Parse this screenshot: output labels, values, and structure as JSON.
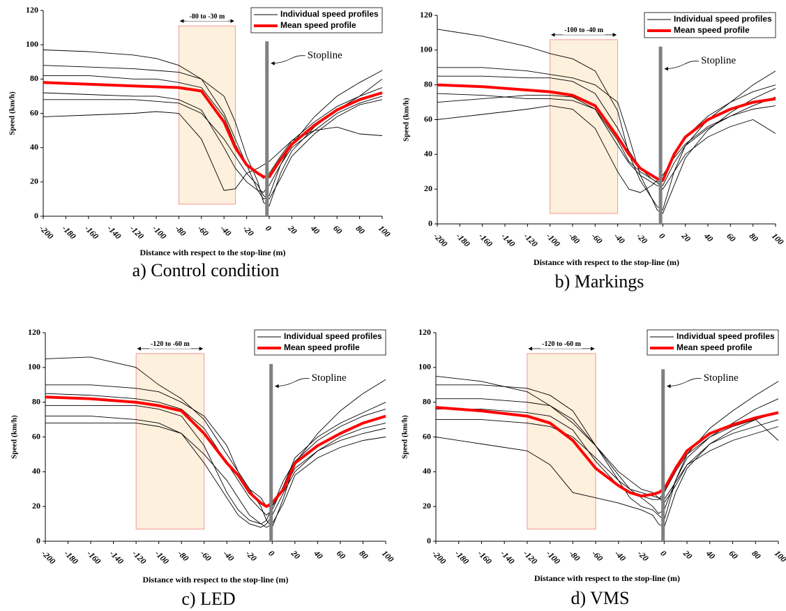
{
  "chart_data": [
    {
      "type": "line",
      "caption": "a) Control condition",
      "xlabel": "Distance with respect to the stop-line (m)",
      "ylabel": "Speed (km/h)",
      "xlim": [
        -200,
        100
      ],
      "ylim": [
        0,
        120
      ],
      "xticks": [
        -200,
        -180,
        -160,
        -140,
        -120,
        -100,
        -80,
        -60,
        -40,
        -20,
        0,
        20,
        40,
        60,
        80,
        100
      ],
      "yticks": [
        0,
        20,
        40,
        60,
        80,
        100,
        120
      ],
      "legend": "upper right",
      "stopline": {
        "label": "Stopline",
        "x": -2,
        "height": 102
      },
      "highlight": {
        "label": "-80 to -30 m",
        "x": [
          -80,
          -30
        ],
        "y": [
          7,
          111
        ]
      },
      "x": [
        -200,
        -160,
        -120,
        -100,
        -80,
        -60,
        -40,
        -30,
        -20,
        -10,
        -5,
        0,
        10,
        20,
        40,
        60,
        80,
        100
      ],
      "series": [
        {
          "name": "Individual speed profiles",
          "color": "#000000",
          "profiles": [
            [
              97,
              96,
              94,
              92,
              88,
              80,
              60,
              45,
              30,
              15,
              10,
              12,
              30,
              42,
              58,
              70,
              78,
              85
            ],
            [
              72,
              71,
              70,
              70,
              68,
              62,
              40,
              28,
              20,
              15,
              14,
              18,
              30,
              40,
              50,
              60,
              66,
              70
            ],
            [
              82,
              82,
              80,
              80,
              78,
              75,
              58,
              42,
              30,
              25,
              22,
              25,
              35,
              44,
              55,
              64,
              70,
              75
            ],
            [
              58,
              59,
              60,
              61,
              60,
              45,
              15,
              16,
              25,
              28,
              30,
              32,
              38,
              44,
              50,
              52,
              48,
              47
            ],
            [
              88,
              87,
              86,
              85,
              84,
              80,
              70,
              55,
              35,
              20,
              8,
              6,
              25,
              38,
              52,
              62,
              70,
              80
            ],
            [
              68,
              68,
              68,
              67,
              66,
              60,
              45,
              35,
              25,
              18,
              12,
              10,
              22,
              35,
              48,
              58,
              65,
              68
            ]
          ]
        },
        {
          "name": "Mean speed profile",
          "color": "#ff0000",
          "values": [
            78,
            77,
            76,
            75.5,
            75,
            73,
            55,
            40,
            30,
            25,
            23,
            23,
            33,
            42,
            53,
            62,
            68,
            72
          ]
        }
      ]
    },
    {
      "type": "line",
      "caption": "b) Markings",
      "xlabel": "Distance with respect to the stop-line (m)",
      "ylabel": "Speed (km/h)",
      "xlim": [
        -200,
        100
      ],
      "ylim": [
        0,
        120
      ],
      "xticks": [
        -200,
        -180,
        -160,
        -140,
        -120,
        -100,
        -80,
        -60,
        -40,
        -20,
        0,
        20,
        40,
        60,
        80,
        100
      ],
      "yticks": [
        0,
        20,
        40,
        60,
        80,
        100,
        120
      ],
      "legend": "upper right",
      "stopline": {
        "label": "Stopline",
        "x": -2,
        "height": 102
      },
      "highlight": {
        "label": "-100 to -40 m",
        "x": [
          -100,
          -40
        ],
        "y": [
          6,
          106
        ]
      },
      "x": [
        -200,
        -160,
        -120,
        -100,
        -80,
        -60,
        -40,
        -30,
        -20,
        -10,
        -5,
        0,
        10,
        20,
        40,
        60,
        80,
        100
      ],
      "series": [
        {
          "name": "Individual speed profiles",
          "color": "#000000",
          "profiles": [
            [
              112,
              108,
              102,
              98,
              95,
              88,
              65,
              40,
              25,
              15,
              10,
              8,
              30,
              45,
              60,
              70,
              80,
              88
            ],
            [
              70,
              72,
              74,
              74,
              73,
              66,
              45,
              35,
              28,
              24,
              22,
              22,
              35,
              45,
              55,
              62,
              66,
              68
            ],
            [
              85,
              85,
              84,
              84,
              82,
              75,
              55,
              42,
              32,
              26,
              24,
              26,
              40,
              50,
              62,
              70,
              76,
              80
            ],
            [
              60,
              63,
              66,
              68,
              66,
              55,
              30,
              20,
              18,
              22,
              25,
              28,
              38,
              46,
              56,
              62,
              68,
              73
            ],
            [
              90,
              90,
              88,
              86,
              84,
              80,
              70,
              50,
              28,
              15,
              8,
              6,
              22,
              38,
              54,
              64,
              72,
              78
            ],
            [
              75,
              74,
              72,
              72,
              71,
              66,
              48,
              36,
              30,
              26,
              24,
              20,
              30,
              40,
              50,
              56,
              60,
              52
            ]
          ]
        },
        {
          "name": "Mean speed profile",
          "color": "#ff0000",
          "values": [
            80,
            79,
            77,
            76,
            74,
            68,
            50,
            40,
            32,
            28,
            26,
            25,
            40,
            50,
            60,
            66,
            70,
            72
          ]
        }
      ]
    },
    {
      "type": "line",
      "caption": "c) LED",
      "xlabel": "Distance with respect to the stop-line (m)",
      "ylabel": "Speed (km/h)",
      "xlim": [
        -200,
        100
      ],
      "ylim": [
        0,
        120
      ],
      "xticks": [
        -200,
        -180,
        -160,
        -140,
        -120,
        -100,
        -80,
        -60,
        -40,
        -20,
        0,
        20,
        40,
        60,
        80,
        100
      ],
      "yticks": [
        0,
        20,
        40,
        60,
        80,
        100,
        120
      ],
      "legend": "upper right",
      "stopline": {
        "label": "Stopline",
        "x": -1,
        "height": 102
      },
      "highlight": {
        "label": "-120 to -60 m",
        "x": [
          -120,
          -60
        ],
        "y": [
          7,
          108
        ]
      },
      "x": [
        -200,
        -160,
        -120,
        -100,
        -80,
        -60,
        -40,
        -30,
        -20,
        -10,
        -5,
        0,
        10,
        20,
        40,
        60,
        80,
        100
      ],
      "series": [
        {
          "name": "Individual speed profiles",
          "color": "#000000",
          "profiles": [
            [
              105,
              106,
              100,
              90,
              82,
              70,
              50,
              40,
              30,
              20,
              12,
              8,
              25,
              45,
              62,
              75,
              85,
              93
            ],
            [
              72,
              72,
              70,
              68,
              62,
              45,
              25,
              15,
              10,
              8,
              10,
              15,
              28,
              40,
              52,
              60,
              65,
              68
            ],
            [
              85,
              84,
              82,
              80,
              76,
              65,
              45,
              35,
              25,
              18,
              15,
              18,
              32,
              48,
              60,
              68,
              74,
              80
            ],
            [
              78,
              78,
              78,
              76,
              72,
              55,
              28,
              18,
              12,
              10,
              12,
              20,
              35,
              46,
              58,
              66,
              72,
              76
            ],
            [
              90,
              90,
              88,
              86,
              80,
              72,
              55,
              40,
              30,
              25,
              20,
              20,
              30,
              42,
              52,
              58,
              62,
              65
            ],
            [
              68,
              68,
              68,
              66,
              62,
              50,
              35,
              25,
              15,
              10,
              8,
              10,
              22,
              38,
              48,
              54,
              58,
              60
            ]
          ]
        },
        {
          "name": "Mean speed profile",
          "color": "#ff0000",
          "values": [
            83,
            82,
            80,
            78,
            75,
            62,
            45,
            38,
            28,
            22,
            20,
            22,
            30,
            45,
            55,
            62,
            68,
            72
          ]
        }
      ]
    },
    {
      "type": "line",
      "caption": "d) VMS",
      "xlabel": "Distance with respect to the stop-line (m)",
      "ylabel": "Speed (km/h)",
      "xlim": [
        -200,
        100
      ],
      "ylim": [
        0,
        120
      ],
      "xticks": [
        -200,
        -180,
        -160,
        -140,
        -120,
        -100,
        -80,
        -60,
        -40,
        -20,
        0,
        20,
        40,
        60,
        80,
        100
      ],
      "yticks": [
        0,
        20,
        40,
        60,
        80,
        100,
        120
      ],
      "legend": "upper right",
      "stopline": {
        "label": "Stopline",
        "x": -1,
        "height": 99
      },
      "highlight": {
        "label": "-120 to -60 m",
        "x": [
          -120,
          -60
        ],
        "y": [
          7,
          108
        ]
      },
      "x": [
        -200,
        -160,
        -120,
        -100,
        -80,
        -60,
        -40,
        -30,
        -20,
        -10,
        -5,
        0,
        10,
        20,
        40,
        60,
        80,
        100
      ],
      "series": [
        {
          "name": "Individual speed profiles",
          "color": "#000000",
          "profiles": [
            [
              90,
              90,
              88,
              84,
              75,
              55,
              35,
              25,
              20,
              18,
              15,
              12,
              35,
              50,
              65,
              75,
              84,
              92
            ],
            [
              76,
              76,
              74,
              72,
              64,
              46,
              32,
              28,
              26,
              24,
              24,
              28,
              40,
              50,
              60,
              66,
              70,
              74
            ],
            [
              60,
              56,
              52,
              44,
              28,
              25,
              22,
              20,
              18,
              15,
              10,
              8,
              28,
              42,
              56,
              62,
              66,
              70
            ],
            [
              82,
              82,
              80,
              78,
              70,
              55,
              38,
              30,
              25,
              20,
              16,
              18,
              35,
              48,
              60,
              68,
              76,
              82
            ],
            [
              95,
              92,
              86,
              78,
              68,
              55,
              40,
              35,
              30,
              28,
              25,
              22,
              32,
              44,
              56,
              64,
              70,
              58
            ],
            [
              70,
              70,
              68,
              66,
              60,
              48,
              35,
              30,
              28,
              26,
              25,
              24,
              34,
              44,
              52,
              58,
              62,
              66
            ]
          ]
        },
        {
          "name": "Mean speed profile",
          "color": "#ff0000",
          "values": [
            77,
            75,
            72,
            68,
            58,
            42,
            32,
            28,
            26,
            27,
            28,
            30,
            42,
            52,
            62,
            67,
            71,
            74
          ]
        }
      ]
    }
  ]
}
